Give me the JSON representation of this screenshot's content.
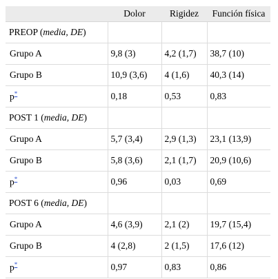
{
  "headers": [
    "",
    "Dolor",
    "Rigidez",
    "Función física"
  ],
  "sections": [
    {
      "label": "PREOP",
      "stat_italic": "media, DE",
      "rows": [
        {
          "label": "Grupo A",
          "values": [
            "9,8 (3)",
            "4,2 (1,7)",
            "38,7 (10)"
          ]
        },
        {
          "label": "Grupo B",
          "values": [
            "10,9 (3,6)",
            "4 (1,6)",
            "40,3 (14)"
          ]
        },
        {
          "label": "p",
          "footnote": "*",
          "values": [
            "0,18",
            "0,53",
            "0,83"
          ]
        }
      ]
    },
    {
      "label": "POST 1",
      "stat_italic": "media, DE",
      "rows": [
        {
          "label": "Grupo A",
          "values": [
            "5,7 (3,4)",
            "2,9 (1,3)",
            "23,1 (13,9)"
          ]
        },
        {
          "label": "Grupo B",
          "values": [
            "5,8 (3,6)",
            "2,1 (1,7)",
            "20,9 (10,6)"
          ]
        },
        {
          "label": "p",
          "footnote": "*",
          "values": [
            "0,96",
            "0,03",
            "0,69"
          ]
        }
      ]
    },
    {
      "label": "POST 6",
      "stat_italic": "media, DE",
      "rows": [
        {
          "label": "Grupo A",
          "values": [
            "4,6 (3,9)",
            "2,1 (2)",
            "19,7 (15,4)"
          ]
        },
        {
          "label": "Grupo B",
          "values": [
            "4 (2,8)",
            "2 (1,5)",
            "17,6 (12)"
          ]
        },
        {
          "label": "p",
          "footnote": "*",
          "values": [
            "0,97",
            "0,83",
            "0,86"
          ]
        }
      ]
    }
  ]
}
